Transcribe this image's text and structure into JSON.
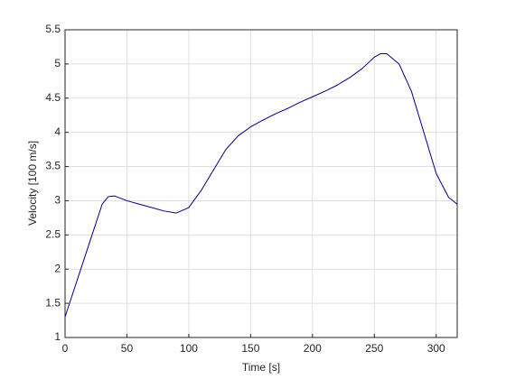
{
  "chart_data": {
    "type": "line",
    "xlabel": "Time [s]",
    "ylabel": "Velocity [100 m/s]",
    "x": [
      0,
      10,
      20,
      30,
      35,
      40,
      50,
      60,
      70,
      80,
      90,
      100,
      110,
      120,
      130,
      140,
      150,
      160,
      170,
      180,
      190,
      200,
      210,
      220,
      230,
      240,
      250,
      255,
      260,
      270,
      280,
      290,
      300,
      310,
      317
    ],
    "series": [
      {
        "color": "#000080",
        "values": [
          1.3,
          1.85,
          2.4,
          2.95,
          3.06,
          3.07,
          3.0,
          2.95,
          2.9,
          2.85,
          2.82,
          2.9,
          3.15,
          3.45,
          3.75,
          3.95,
          4.08,
          4.18,
          4.27,
          4.35,
          4.44,
          4.52,
          4.6,
          4.69,
          4.8,
          4.93,
          5.1,
          5.15,
          5.15,
          5.0,
          4.6,
          4.0,
          3.4,
          3.05,
          2.95
        ]
      }
    ],
    "xlim": [
      0,
      317
    ],
    "ylim": [
      1,
      5.5
    ],
    "xticks": [
      0,
      50,
      100,
      150,
      200,
      250,
      300
    ],
    "yticks": [
      1,
      1.5,
      2,
      2.5,
      3,
      3.5,
      4,
      4.5,
      5,
      5.5
    ],
    "grid": true
  }
}
